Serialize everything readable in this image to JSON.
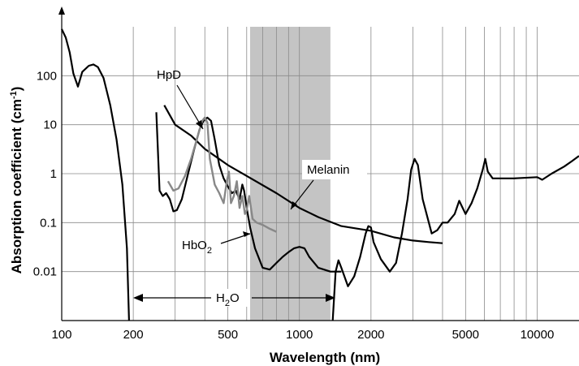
{
  "chart_data": {
    "type": "line",
    "title": "",
    "xlabel": "Wavelength (nm)",
    "ylabel": "Absorption coefficient (cm",
    "ylabel_sup": "-1",
    "ylabel_close": ")",
    "xscale": "log",
    "yscale": "log",
    "xlim": [
      100,
      15000
    ],
    "ylim": [
      0.001,
      1000
    ],
    "grid": true,
    "x_ticks": [
      {
        "value": 100,
        "label": "100"
      },
      {
        "value": 200,
        "label": "200"
      },
      {
        "value": 500,
        "label": "500"
      },
      {
        "value": 1000,
        "label": "1000"
      },
      {
        "value": 2000,
        "label": "2000"
      },
      {
        "value": 5000,
        "label": "5000"
      },
      {
        "value": 10000,
        "label": "10000"
      }
    ],
    "y_ticks": [
      {
        "value": 100,
        "label": "100"
      },
      {
        "value": 10,
        "label": "10"
      },
      {
        "value": 1,
        "label": "1"
      },
      {
        "value": 0.1,
        "label": "0.1"
      },
      {
        "value": 0.01,
        "label": "0.01"
      }
    ],
    "shaded_band": {
      "x": [
        620,
        1350
      ],
      "color": "#c4c4c4"
    },
    "series": [
      {
        "name": "H2O",
        "color": "#000000",
        "points": [
          [
            100,
            900
          ],
          [
            104,
            600
          ],
          [
            108,
            300
          ],
          [
            112,
            110
          ],
          [
            117,
            60
          ],
          [
            122,
            120
          ],
          [
            130,
            160
          ],
          [
            136,
            170
          ],
          [
            142,
            150
          ],
          [
            150,
            90
          ],
          [
            160,
            25
          ],
          [
            170,
            5
          ],
          [
            180,
            0.6
          ],
          [
            188,
            0.03
          ],
          [
            192,
            0.001
          ],
          [
            1380,
            0.001
          ],
          [
            1420,
            0.01
          ],
          [
            1460,
            0.017
          ],
          [
            1500,
            0.012
          ],
          [
            1600,
            0.005
          ],
          [
            1700,
            0.008
          ],
          [
            1800,
            0.02
          ],
          [
            1900,
            0.06
          ],
          [
            1950,
            0.085
          ],
          [
            2000,
            0.08
          ],
          [
            2050,
            0.04
          ],
          [
            2200,
            0.018
          ],
          [
            2400,
            0.01
          ],
          [
            2550,
            0.015
          ],
          [
            2700,
            0.06
          ],
          [
            2850,
            0.3
          ],
          [
            2950,
            1.2
          ],
          [
            3050,
            2
          ],
          [
            3150,
            1.5
          ],
          [
            3300,
            0.3
          ],
          [
            3600,
            0.06
          ],
          [
            3800,
            0.07
          ],
          [
            4000,
            0.1
          ],
          [
            4200,
            0.1
          ],
          [
            4500,
            0.15
          ],
          [
            4700,
            0.28
          ],
          [
            5000,
            0.15
          ],
          [
            5300,
            0.25
          ],
          [
            5600,
            0.5
          ],
          [
            5900,
            1.2
          ],
          [
            6050,
            2
          ],
          [
            6200,
            1.1
          ],
          [
            6500,
            0.8
          ],
          [
            8000,
            0.8
          ],
          [
            10000,
            0.85
          ],
          [
            10500,
            0.75
          ],
          [
            11500,
            1
          ],
          [
            13000,
            1.4
          ],
          [
            14000,
            1.8
          ],
          [
            15000,
            2.3
          ]
        ]
      },
      {
        "name": "HbO2",
        "color": "#000000",
        "points": [
          [
            250,
            18
          ],
          [
            258,
            0.45
          ],
          [
            266,
            0.35
          ],
          [
            275,
            0.4
          ],
          [
            285,
            0.3
          ],
          [
            295,
            0.17
          ],
          [
            305,
            0.18
          ],
          [
            320,
            0.3
          ],
          [
            340,
            1
          ],
          [
            360,
            3
          ],
          [
            380,
            8
          ],
          [
            395,
            12
          ],
          [
            410,
            14
          ],
          [
            425,
            12
          ],
          [
            440,
            5
          ],
          [
            460,
            1.5
          ],
          [
            480,
            0.8
          ],
          [
            500,
            0.55
          ],
          [
            520,
            0.4
          ],
          [
            540,
            0.45
          ],
          [
            560,
            0.3
          ],
          [
            575,
            0.6
          ],
          [
            585,
            0.45
          ],
          [
            600,
            0.2
          ],
          [
            620,
            0.08
          ],
          [
            650,
            0.03
          ],
          [
            700,
            0.012
          ],
          [
            750,
            0.011
          ],
          [
            800,
            0.015
          ],
          [
            850,
            0.02
          ],
          [
            900,
            0.025
          ],
          [
            950,
            0.03
          ],
          [
            1000,
            0.032
          ],
          [
            1050,
            0.03
          ],
          [
            1100,
            0.02
          ],
          [
            1200,
            0.012
          ],
          [
            1350,
            0.01
          ],
          [
            1500,
            0.01
          ]
        ]
      },
      {
        "name": "Melanin",
        "color": "#000000",
        "points": [
          [
            270,
            25
          ],
          [
            300,
            10
          ],
          [
            350,
            6
          ],
          [
            400,
            3.2
          ],
          [
            500,
            1.5
          ],
          [
            600,
            0.9
          ],
          [
            800,
            0.4
          ],
          [
            1000,
            0.2
          ],
          [
            1200,
            0.13
          ],
          [
            1500,
            0.085
          ],
          [
            2000,
            0.068
          ],
          [
            2500,
            0.05
          ],
          [
            3000,
            0.043
          ],
          [
            3500,
            0.04
          ],
          [
            4000,
            0.038
          ]
        ]
      },
      {
        "name": "HpD",
        "color": "#888888",
        "points": [
          [
            280,
            0.7
          ],
          [
            295,
            0.45
          ],
          [
            310,
            0.5
          ],
          [
            330,
            0.9
          ],
          [
            350,
            2
          ],
          [
            370,
            5
          ],
          [
            390,
            12
          ],
          [
            400,
            14
          ],
          [
            410,
            11
          ],
          [
            420,
            2
          ],
          [
            440,
            0.6
          ],
          [
            460,
            0.4
          ],
          [
            480,
            0.25
          ],
          [
            495,
            0.7
          ],
          [
            505,
            1.1
          ],
          [
            515,
            0.25
          ],
          [
            530,
            0.35
          ],
          [
            545,
            0.7
          ],
          [
            560,
            0.2
          ],
          [
            575,
            0.35
          ],
          [
            590,
            0.15
          ],
          [
            600,
            0.18
          ],
          [
            615,
            0.35
          ],
          [
            635,
            0.12
          ],
          [
            660,
            0.1
          ],
          [
            700,
            0.09
          ],
          [
            750,
            0.075
          ],
          [
            800,
            0.065
          ]
        ]
      }
    ],
    "annotations": {
      "hpd": "HpD",
      "melanin": "Melanin",
      "hbo2_base": "HbO",
      "hbo2_sub": "2",
      "h2o_h": "H",
      "h2o_sub": "2",
      "h2o_o": "O"
    }
  }
}
